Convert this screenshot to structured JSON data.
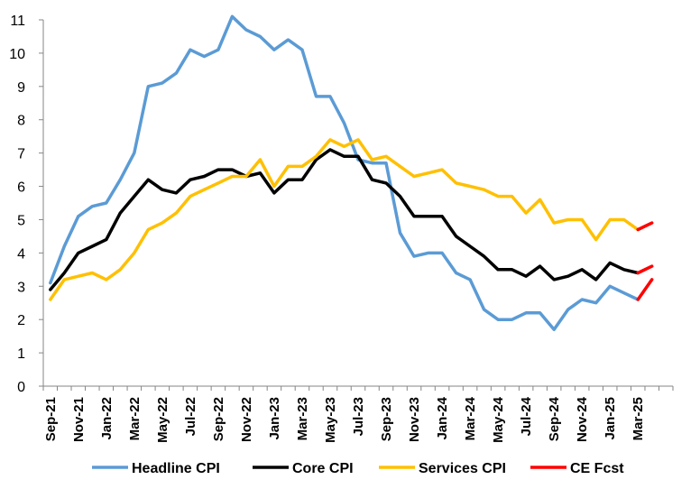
{
  "chart_data": {
    "type": "line",
    "title": "",
    "xlabel": "",
    "ylabel": "",
    "ylim": [
      0,
      11
    ],
    "yticks": [
      "0",
      "1",
      "2",
      "3",
      "4",
      "5",
      "6",
      "7",
      "8",
      "9",
      "10",
      "11"
    ],
    "grid": false,
    "legend_position": "bottom",
    "x": [
      "Sep-21",
      "Oct-21",
      "Nov-21",
      "Dec-21",
      "Jan-22",
      "Feb-22",
      "Mar-22",
      "Apr-22",
      "May-22",
      "Jun-22",
      "Jul-22",
      "Aug-22",
      "Sep-22",
      "Oct-22",
      "Nov-22",
      "Dec-22",
      "Jan-23",
      "Feb-23",
      "Mar-23",
      "Apr-23",
      "May-23",
      "Jun-23",
      "Jul-23",
      "Aug-23",
      "Sep-23",
      "Oct-23",
      "Nov-23",
      "Dec-23",
      "Jan-24",
      "Feb-24",
      "Mar-24",
      "Apr-24",
      "May-24",
      "Jun-24",
      "Jul-24",
      "Aug-24",
      "Sep-24",
      "Oct-24",
      "Nov-24",
      "Dec-24",
      "Jan-25",
      "Feb-25",
      "Mar-25",
      "Apr-25",
      "May-25"
    ],
    "xtick_labels": [
      "Sep-21",
      "Nov-21",
      "Jan-22",
      "Mar-22",
      "May-22",
      "Jul-22",
      "Sep-22",
      "Nov-22",
      "Jan-23",
      "Mar-23",
      "May-23",
      "Jul-23",
      "Sep-23",
      "Nov-23",
      "Jan-24",
      "Mar-24",
      "May-24",
      "Jul-24",
      "Sep-24",
      "Nov-24",
      "Jan-25",
      "Mar-25"
    ],
    "series": [
      {
        "name": "Headline CPI",
        "color": "#5B9BD5",
        "values": [
          3.1,
          4.2,
          5.1,
          5.4,
          5.5,
          6.2,
          7.0,
          9.0,
          9.1,
          9.4,
          10.1,
          9.9,
          10.1,
          11.1,
          10.7,
          10.5,
          10.1,
          10.4,
          10.1,
          8.7,
          8.7,
          7.9,
          6.8,
          6.7,
          6.7,
          4.6,
          3.9,
          4.0,
          4.0,
          3.4,
          3.2,
          2.3,
          2.0,
          2.0,
          2.2,
          2.2,
          1.7,
          2.3,
          2.6,
          2.5,
          3.0,
          2.8,
          2.6,
          null,
          null
        ]
      },
      {
        "name": "Core CPI",
        "color": "#000000",
        "values": [
          2.9,
          3.4,
          4.0,
          4.2,
          4.4,
          5.2,
          5.7,
          6.2,
          5.9,
          5.8,
          6.2,
          6.3,
          6.5,
          6.5,
          6.3,
          6.4,
          5.8,
          6.2,
          6.2,
          6.8,
          7.1,
          6.9,
          6.9,
          6.2,
          6.1,
          5.7,
          5.1,
          5.1,
          5.1,
          4.5,
          4.2,
          3.9,
          3.5,
          3.5,
          3.3,
          3.6,
          3.2,
          3.3,
          3.5,
          3.2,
          3.7,
          3.5,
          3.4,
          null,
          null
        ]
      },
      {
        "name": "Services CPI",
        "color": "#FFC000",
        "values": [
          2.6,
          3.2,
          3.3,
          3.4,
          3.2,
          3.5,
          4.0,
          4.7,
          4.9,
          5.2,
          5.7,
          5.9,
          6.1,
          6.3,
          6.3,
          6.8,
          6.0,
          6.6,
          6.6,
          6.9,
          7.4,
          7.2,
          7.4,
          6.8,
          6.9,
          6.6,
          6.3,
          6.4,
          6.5,
          6.1,
          6.0,
          5.9,
          5.7,
          5.7,
          5.2,
          5.6,
          4.9,
          5.0,
          5.0,
          4.4,
          5.0,
          5.0,
          4.7,
          null,
          null
        ]
      },
      {
        "name": "CE Fcst",
        "color": "#FF0000",
        "segments": [
          {
            "from": "Mar-25",
            "values": [
              2.6,
              3.2
            ]
          },
          {
            "from": "Mar-25",
            "values": [
              3.4,
              3.6
            ]
          },
          {
            "from": "Mar-25",
            "values": [
              4.7,
              4.9
            ]
          }
        ]
      }
    ],
    "legend": [
      {
        "label": "Headline CPI",
        "color": "#5B9BD5"
      },
      {
        "label": "Core CPI",
        "color": "#000000"
      },
      {
        "label": "Services CPI",
        "color": "#FFC000"
      },
      {
        "label": "CE Fcst",
        "color": "#FF0000"
      }
    ]
  }
}
